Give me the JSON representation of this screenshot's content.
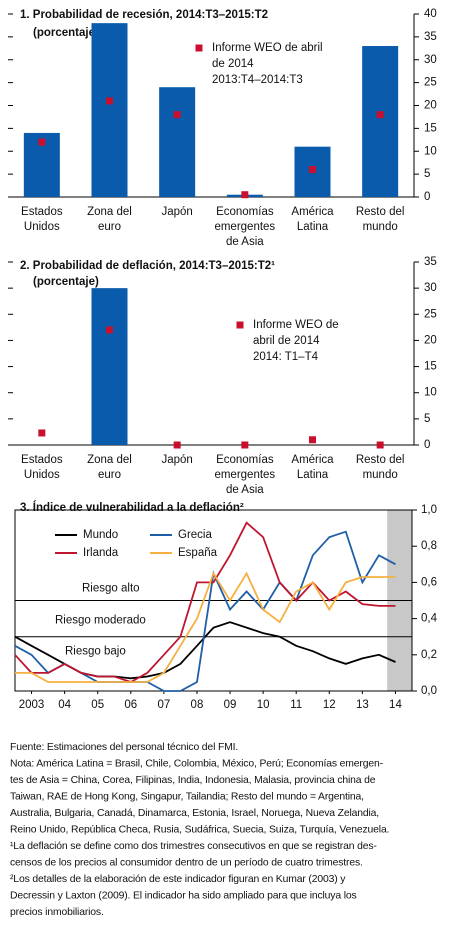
{
  "chart_data": [
    {
      "type": "bar",
      "title": "1. Probabilidad de recesión, 2014:T3–2015:T2",
      "subtitle": "(porcentaje)",
      "categories": [
        [
          "Estados",
          "Unidos"
        ],
        [
          "Zona del",
          "euro"
        ],
        [
          "Japón"
        ],
        [
          "Economías",
          "emergentes",
          "de Asia"
        ],
        [
          "América",
          "Latina"
        ],
        [
          "Resto del",
          "mundo"
        ]
      ],
      "values": [
        14,
        38,
        24,
        0.5,
        11,
        33
      ],
      "color": "#0a5bab",
      "reference": {
        "name": [
          "Informe WEO de abril",
          "de 2014",
          "2013:T4–2014:T3"
        ],
        "color": "#c8102e",
        "values": [
          12,
          21,
          18,
          0.5,
          6,
          18
        ]
      },
      "ylim": [
        0,
        40
      ],
      "yticks": [
        0,
        5,
        10,
        15,
        20,
        25,
        30,
        35,
        40
      ],
      "axis_side": "right"
    },
    {
      "type": "bar",
      "title": "2. Probabilidad de deflación, 2014:T3–2015:T2¹",
      "subtitle": "(porcentaje)",
      "categories": [
        [
          "Estados",
          "Unidos"
        ],
        [
          "Zona del",
          "euro"
        ],
        [
          "Japón"
        ],
        [
          "Economías",
          "emergentes",
          "de Asia"
        ],
        [
          "América",
          "Latina"
        ],
        [
          "Resto del",
          "mundo"
        ]
      ],
      "values": [
        0,
        30,
        0,
        0,
        0,
        0
      ],
      "color": "#0a5bab",
      "reference": {
        "name": [
          "Informe WEO de",
          "abril de 2014",
          "2014: T1–T4"
        ],
        "color": "#c8102e",
        "values": [
          2.3,
          22,
          0,
          0,
          1,
          0
        ]
      },
      "ylim": [
        0,
        35
      ],
      "yticks": [
        0,
        5,
        10,
        15,
        20,
        25,
        30,
        35
      ],
      "axis_side": "right"
    },
    {
      "type": "line",
      "title": "3. Índice de vulnerabilidad a la deflación²",
      "x": [
        2003,
        2003.5,
        2004,
        2004.5,
        2005,
        2005.5,
        2006,
        2006.5,
        2007,
        2007.5,
        2008,
        2008.5,
        2009,
        2009.5,
        2010,
        2010.5,
        2011,
        2011.5,
        2012,
        2012.5,
        2013,
        2013.5,
        2014,
        2014.5
      ],
      "series": [
        {
          "name": "Mundo",
          "color": "#000000",
          "values": [
            0.3,
            0.25,
            0.2,
            0.15,
            0.1,
            0.08,
            0.08,
            0.07,
            0.08,
            0.1,
            0.15,
            0.25,
            0.35,
            0.38,
            0.35,
            0.32,
            0.3,
            0.25,
            0.22,
            0.18,
            0.15,
            0.18,
            0.2,
            0.16
          ]
        },
        {
          "name": "Grecia",
          "color": "#1f5fa8",
          "values": [
            0.25,
            0.2,
            0.1,
            0.15,
            0.1,
            0.05,
            0.05,
            0.05,
            0.05,
            0.0,
            0.0,
            0.05,
            0.65,
            0.45,
            0.55,
            0.45,
            0.6,
            0.5,
            0.75,
            0.85,
            0.88,
            0.6,
            0.75,
            0.7
          ]
        },
        {
          "name": "Irlanda",
          "color": "#c0152f",
          "values": [
            0.2,
            0.1,
            0.1,
            0.15,
            0.1,
            0.08,
            0.08,
            0.05,
            0.1,
            0.2,
            0.3,
            0.6,
            0.6,
            0.75,
            0.93,
            0.85,
            0.6,
            0.5,
            0.6,
            0.5,
            0.55,
            0.48,
            0.47,
            0.47
          ]
        },
        {
          "name": "España",
          "color": "#f5b041",
          "values": [
            0.1,
            0.1,
            0.05,
            0.05,
            0.05,
            0.05,
            0.05,
            0.05,
            0.05,
            0.1,
            0.25,
            0.4,
            0.65,
            0.5,
            0.65,
            0.45,
            0.38,
            0.55,
            0.6,
            0.45,
            0.6,
            0.63,
            0.63,
            0.63
          ]
        }
      ],
      "xlim": [
        2003,
        2015
      ],
      "xticks": [
        {
          "value": 2003.5,
          "label": "2003"
        },
        {
          "value": 2004.5,
          "label": "04"
        },
        {
          "value": 2005.5,
          "label": "05"
        },
        {
          "value": 2006.5,
          "label": "06"
        },
        {
          "value": 2007.5,
          "label": "07"
        },
        {
          "value": 2008.5,
          "label": "08"
        },
        {
          "value": 2009.5,
          "label": "09"
        },
        {
          "value": 2010.5,
          "label": "10"
        },
        {
          "value": 2011.5,
          "label": "11"
        },
        {
          "value": 2012.5,
          "label": "12"
        },
        {
          "value": 2013.5,
          "label": "13"
        },
        {
          "value": 2014.5,
          "label": "14"
        }
      ],
      "ylim": [
        0,
        1
      ],
      "yticks": [
        {
          "value": 0,
          "label": "0,0"
        },
        {
          "value": 0.2,
          "label": "0,2"
        },
        {
          "value": 0.4,
          "label": "0,4"
        },
        {
          "value": 0.6,
          "label": "0,6"
        },
        {
          "value": 0.8,
          "label": "0,8"
        },
        {
          "value": 1,
          "label": "1,0"
        }
      ],
      "thresholds": [
        0.5,
        0.3
      ],
      "threshold_labels": [
        "Riesgo alto",
        "Riesgo moderado",
        "Riesgo bajo"
      ],
      "shade_x": [
        2014.25,
        2015
      ],
      "axis_side": "right",
      "legend": "top-left"
    }
  ],
  "notes": [
    "Fuente: Estimaciones del personal técnico del FMI.",
    "Nota: América Latina = Brasil, Chile, Colombia, México, Perú; Economías emergen-",
    "tes de Asia = China, Corea, Filipinas, India, Indonesia, Malasia, provincia china de",
    "Taiwan, RAE de Hong Kong, Singapur, Tailandia; Resto del mundo = Argentina,",
    "Australia, Bulgaria, Canadá, Dinamarca, Estonia, Israel, Noruega, Nueva Zelandia,",
    "Reino Unido, República Checa, Rusia, Sudáfrica, Suecia, Suiza, Turquía, Venezuela.",
    "¹La deflación se define como dos trimestres consecutivos en que se registran des-",
    "censos de los precios al consumidor dentro de un período de cuatro trimestres.",
    "²Los detalles de la elaboración de este indicador figuran en Kumar (2003) y",
    "Decressin y Laxton (2009). El indicador ha sido ampliado para que incluya los",
    "precios inmobiliarios."
  ]
}
